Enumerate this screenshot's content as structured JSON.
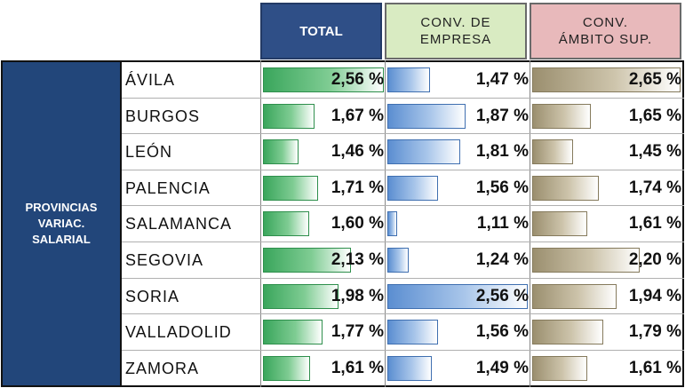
{
  "chart_data": {
    "type": "table",
    "row_group_label": [
      "PROVINCIAS",
      "VARIAC.",
      "SALARIAL"
    ],
    "columns": [
      {
        "key": "total",
        "label_lines": [
          "TOTAL"
        ],
        "color": "#3aa65c",
        "header_color": "#2f4f87"
      },
      {
        "key": "emp",
        "label_lines": [
          "CONV. DE",
          "EMPRESA"
        ],
        "color": "#5b8ed1",
        "header_color": "#d9ebc2"
      },
      {
        "key": "amb",
        "label_lines": [
          "CONV.",
          "ÁMBITO SUP."
        ],
        "color": "#9b8f6f",
        "header_color": "#e8b9bb"
      }
    ],
    "rows": [
      {
        "province": "ÁVILA",
        "total": 2.56,
        "emp": 1.47,
        "amb": 2.65,
        "total_text": "2,56 %",
        "emp_text": "1,47 %",
        "amb_text": "2,65 %"
      },
      {
        "province": "BURGOS",
        "total": 1.67,
        "emp": 1.87,
        "amb": 1.65,
        "total_text": "1,67 %",
        "emp_text": "1,87 %",
        "amb_text": "1,65 %"
      },
      {
        "province": "LEÓN",
        "total": 1.46,
        "emp": 1.81,
        "amb": 1.45,
        "total_text": "1,46 %",
        "emp_text": "1,81 %",
        "amb_text": "1,45 %"
      },
      {
        "province": "PALENCIA",
        "total": 1.71,
        "emp": 1.56,
        "amb": 1.74,
        "total_text": "1,71 %",
        "emp_text": "1,56 %",
        "amb_text": "1,74 %"
      },
      {
        "province": "SALAMANCA",
        "total": 1.6,
        "emp": 1.11,
        "amb": 1.61,
        "total_text": "1,60 %",
        "emp_text": "1,11 %",
        "amb_text": "1,61 %"
      },
      {
        "province": "SEGOVIA",
        "total": 2.13,
        "emp": 1.24,
        "amb": 2.2,
        "total_text": "2,13 %",
        "emp_text": "1,24 %",
        "amb_text": "2,20 %"
      },
      {
        "province": "SORIA",
        "total": 1.98,
        "emp": 2.56,
        "amb": 1.94,
        "total_text": "1,98 %",
        "emp_text": "2,56 %",
        "amb_text": "1,94 %"
      },
      {
        "province": "VALLADOLID",
        "total": 1.77,
        "emp": 1.56,
        "amb": 1.79,
        "total_text": "1,77 %",
        "emp_text": "1,56 %",
        "amb_text": "1,79 %"
      },
      {
        "province": "ZAMORA",
        "total": 1.61,
        "emp": 1.49,
        "amb": 1.61,
        "total_text": "1,61 %",
        "emp_text": "1,49 %",
        "amb_text": "1,61 %"
      }
    ]
  }
}
